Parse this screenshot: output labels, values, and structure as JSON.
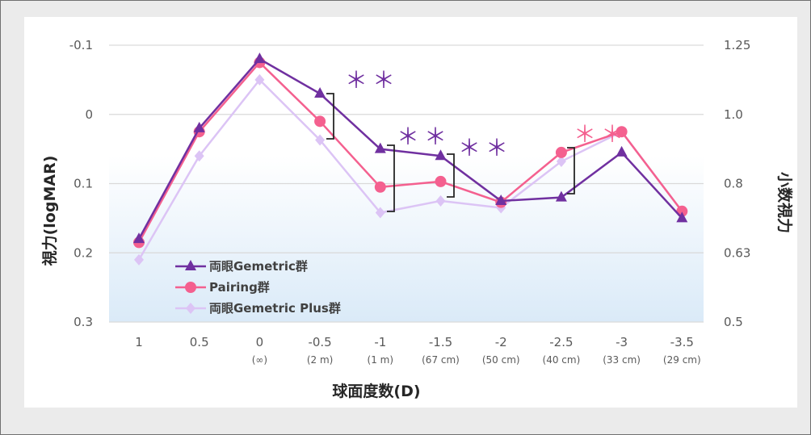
{
  "chart_data": {
    "type": "line",
    "xlabel": "球面度数(D)",
    "ylabel_left": "視力(logMAR)",
    "ylabel_right": "小数視力",
    "categories": [
      "1",
      "0.5",
      "0",
      "-0.5",
      "-1",
      "-1.5",
      "-2",
      "-2.5",
      "-3",
      "-3.5"
    ],
    "category_sublabels": [
      "",
      "",
      "(∞)",
      "(2 m)",
      "(1 m)",
      "(67 cm)",
      "(50 cm)",
      "(40 cm)",
      "(33 cm)",
      "(29 cm)"
    ],
    "left_axis": {
      "inverted": true,
      "ylim": [
        -0.1,
        0.3
      ],
      "ticks": [
        -0.1,
        0,
        0.1,
        0.2,
        0.3
      ],
      "tick_labels": [
        "-0.1",
        "0",
        "0.1",
        "0.2",
        "0.3"
      ]
    },
    "right_axis": {
      "tick_labels": [
        "1.25",
        "1.0",
        "0.8",
        "0.63",
        "0.5"
      ]
    },
    "legend_position": "bottom-left",
    "grid": "horizontal",
    "series": [
      {
        "name": "両眼Gemetric群",
        "color": "#7030a0",
        "marker": "triangle",
        "values": [
          0.18,
          0.02,
          -0.08,
          -0.03,
          0.05,
          0.06,
          0.125,
          0.12,
          0.055,
          0.15
        ]
      },
      {
        "name": "Pairing群",
        "color": "#f4608f",
        "marker": "circle",
        "values": [
          0.185,
          0.025,
          -0.075,
          0.01,
          0.105,
          0.097,
          0.127,
          0.055,
          0.025,
          0.14
        ]
      },
      {
        "name": "両眼Gemetric Plus群",
        "color": "#dcc4f5",
        "marker": "diamond",
        "values": [
          0.21,
          0.06,
          -0.05,
          0.037,
          0.142,
          0.125,
          0.135,
          0.068,
          0.025,
          0.14
        ]
      }
    ],
    "annotations": [
      {
        "text": "＊＊",
        "color": "#7030a0",
        "between_category": "-0.5"
      },
      {
        "text": "＊＊",
        "color": "#7030a0",
        "between_category": "-1"
      },
      {
        "text": "＊＊",
        "color": "#7030a0",
        "between_category": "-1.5"
      },
      {
        "text": "＊＊",
        "color": "#f4608f",
        "between_category": "-2.5"
      }
    ]
  }
}
